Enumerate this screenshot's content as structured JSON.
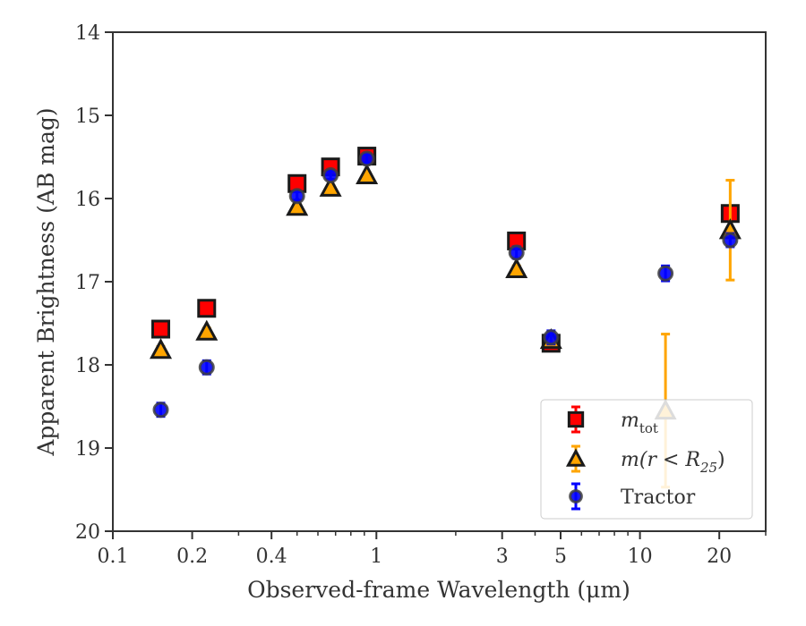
{
  "chart_data": {
    "type": "scatter",
    "title": "",
    "xlabel": "Observed-frame Wavelength (μm)",
    "ylabel": "Apparent Brightness (AB mag)",
    "xscale": "log",
    "xlim": [
      0.1,
      30
    ],
    "ylim": [
      20,
      14
    ],
    "y_inverted": true,
    "x_ticks": [
      0.1,
      0.2,
      0.4,
      1,
      3,
      5,
      10,
      20
    ],
    "x_tick_labels": [
      "0.1",
      "0.2",
      "0.4",
      "1",
      "3",
      "5",
      "10",
      "20"
    ],
    "y_ticks": [
      14,
      15,
      16,
      17,
      18,
      19,
      20
    ],
    "y_tick_labels": [
      "14",
      "15",
      "16",
      "17",
      "18",
      "19",
      "20"
    ],
    "grid": false,
    "legend_position": "lower-right",
    "series": [
      {
        "key": "mtot",
        "name": "m_tot",
        "legend_main": "m",
        "legend_sub": "tot",
        "marker": "square",
        "fill": "#ff0000",
        "edge": "#1a1a1a",
        "errcolor": "#ff0000",
        "points": [
          {
            "x": 0.152,
            "y": 17.57,
            "err": 0.05
          },
          {
            "x": 0.227,
            "y": 17.32,
            "err": 0.05
          },
          {
            "x": 0.5,
            "y": 15.82,
            "err": 0.04
          },
          {
            "x": 0.67,
            "y": 15.62,
            "err": 0.04
          },
          {
            "x": 0.92,
            "y": 15.49,
            "err": 0.04
          },
          {
            "x": 3.4,
            "y": 16.51,
            "err": 0.05
          },
          {
            "x": 4.6,
            "y": 17.74,
            "err": 0.06
          },
          {
            "x": 22,
            "y": 16.18,
            "err": 0.05
          }
        ]
      },
      {
        "key": "mr25",
        "name": "m(r < R25)",
        "legend_main": "m(r < R",
        "legend_sub": "25",
        "legend_tail": ")",
        "marker": "triangle",
        "fill": "#ffa500",
        "edge": "#1a1a1a",
        "errcolor": "#ffa500",
        "points": [
          {
            "x": 0.152,
            "y": 17.82,
            "err": 0.04
          },
          {
            "x": 0.227,
            "y": 17.6,
            "err": 0.04
          },
          {
            "x": 0.5,
            "y": 16.1,
            "err": 0.03
          },
          {
            "x": 0.67,
            "y": 15.87,
            "err": 0.03
          },
          {
            "x": 0.92,
            "y": 15.72,
            "err": 0.03
          },
          {
            "x": 3.4,
            "y": 16.85,
            "err": 0.04
          },
          {
            "x": 4.6,
            "y": 17.7,
            "err": 0.05
          },
          {
            "x": 12.5,
            "y": 18.55,
            "err": 0.92
          },
          {
            "x": 22,
            "y": 16.38,
            "err": 0.6
          }
        ]
      },
      {
        "key": "tractor",
        "name": "Tractor",
        "legend_main": "Tractor",
        "marker": "circle",
        "fill": "#0000ff",
        "edge": "#404040",
        "errcolor": "#0000ff",
        "points": [
          {
            "x": 0.152,
            "y": 18.54,
            "err": 0.08
          },
          {
            "x": 0.227,
            "y": 18.03,
            "err": 0.08
          },
          {
            "x": 0.5,
            "y": 15.97,
            "err": 0.05
          },
          {
            "x": 0.67,
            "y": 15.72,
            "err": 0.05
          },
          {
            "x": 0.92,
            "y": 15.52,
            "err": 0.05
          },
          {
            "x": 3.4,
            "y": 16.65,
            "err": 0.07
          },
          {
            "x": 4.6,
            "y": 17.67,
            "err": 0.08
          },
          {
            "x": 12.5,
            "y": 16.9,
            "err": 0.09
          },
          {
            "x": 22,
            "y": 16.5,
            "err": 0.08
          }
        ]
      }
    ]
  }
}
